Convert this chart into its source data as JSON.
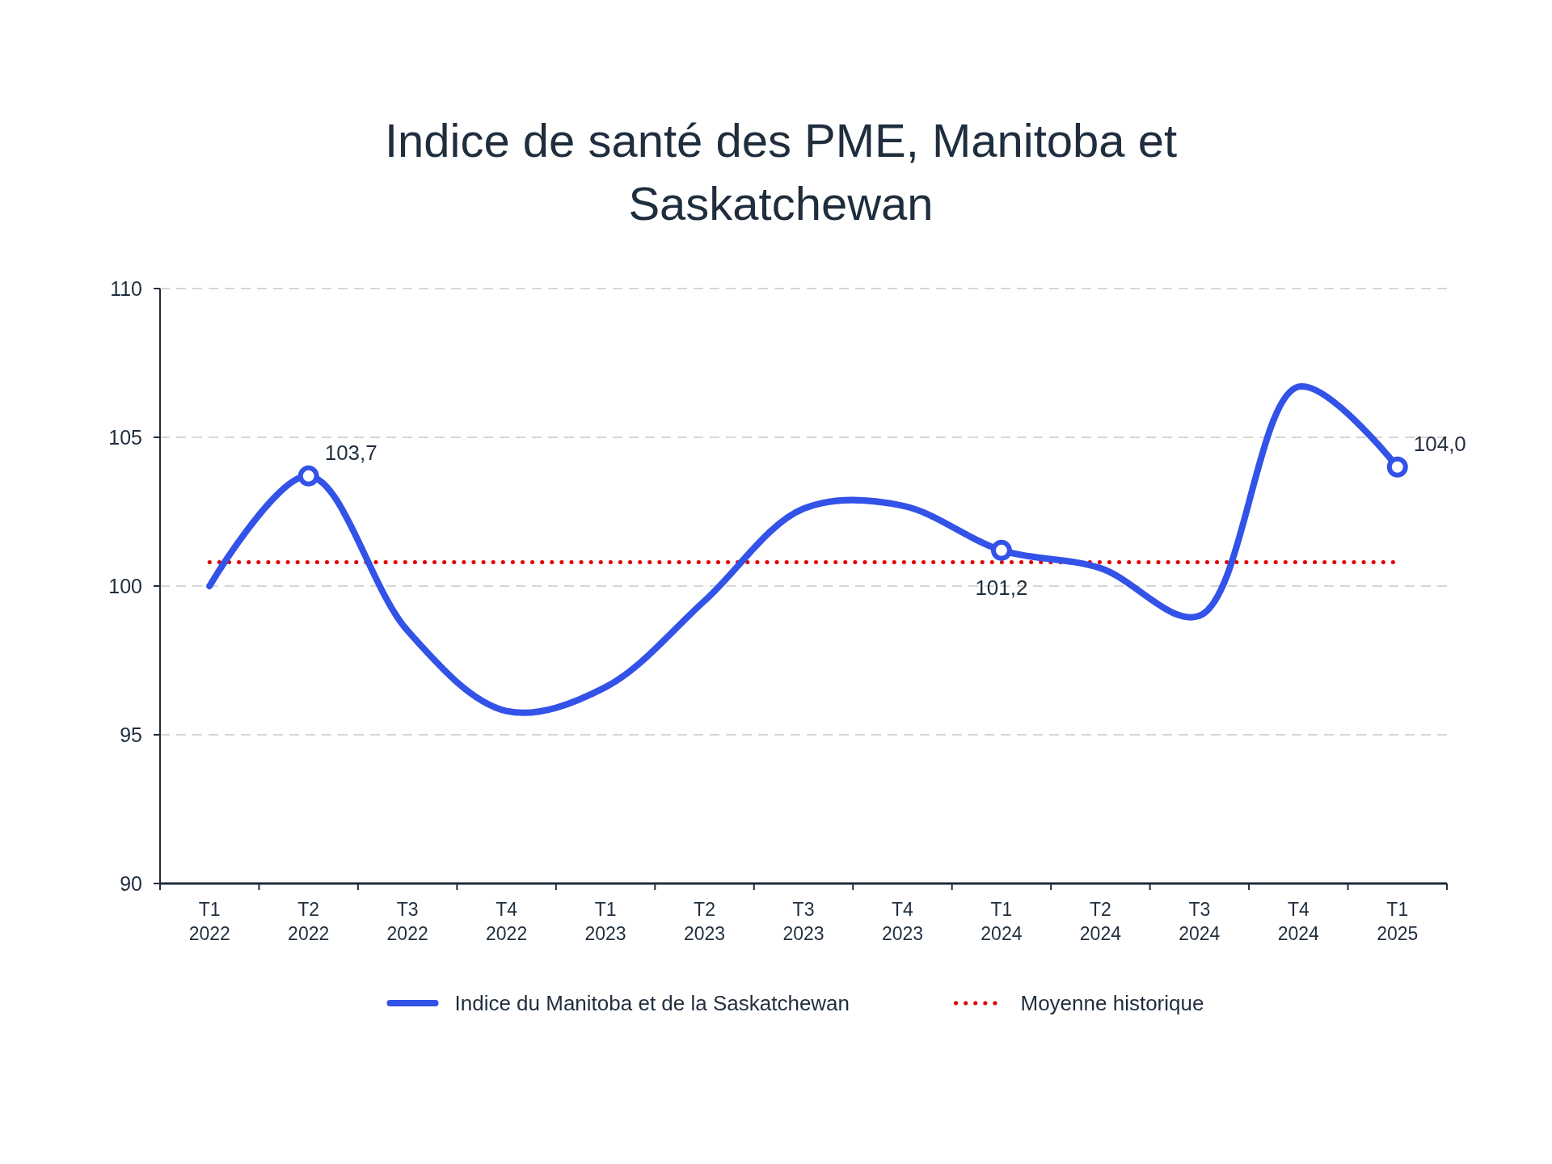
{
  "chart_data": {
    "type": "line",
    "title": "Indice de santé des PME, Manitoba et Saskatchewan",
    "categories": [
      "T1\n2022",
      "T2\n2022",
      "T3\n2022",
      "T4\n2022",
      "T1\n2023",
      "T2\n2023",
      "T3\n2023",
      "T4\n2023",
      "T1\n2024",
      "T2\n2024",
      "T3\n2024",
      "T4\n2024",
      "T1\n2025"
    ],
    "series": [
      {
        "name": "Indice du Manitoba et de la Saskatchewan",
        "color": "#3352e8",
        "values": [
          100,
          103.7,
          98.5,
          95.8,
          96.6,
          99.5,
          102.6,
          102.7,
          101.2,
          100.6,
          99.0,
          106.7,
          104.0
        ],
        "line_style": "solid"
      },
      {
        "type": "scatter",
        "color": "#3352e8",
        "marker": "circle",
        "x": [
          "T2\n2022",
          "T1\n2024",
          "T1\n2025"
        ],
        "values": [
          103.7,
          101.2,
          104.0
        ],
        "value_labels": [
          "103,7",
          "101,2",
          "104,0"
        ]
      }
    ],
    "ref_lines": [
      {
        "axis": "y",
        "value": 100.8,
        "label": "Moyenne historique",
        "color": "#e00000",
        "line_style": "dotted"
      }
    ],
    "ylim": [
      90,
      110
    ],
    "yticks": [
      90,
      95,
      100,
      105,
      110
    ],
    "grid": "y",
    "legend": "bottom"
  }
}
